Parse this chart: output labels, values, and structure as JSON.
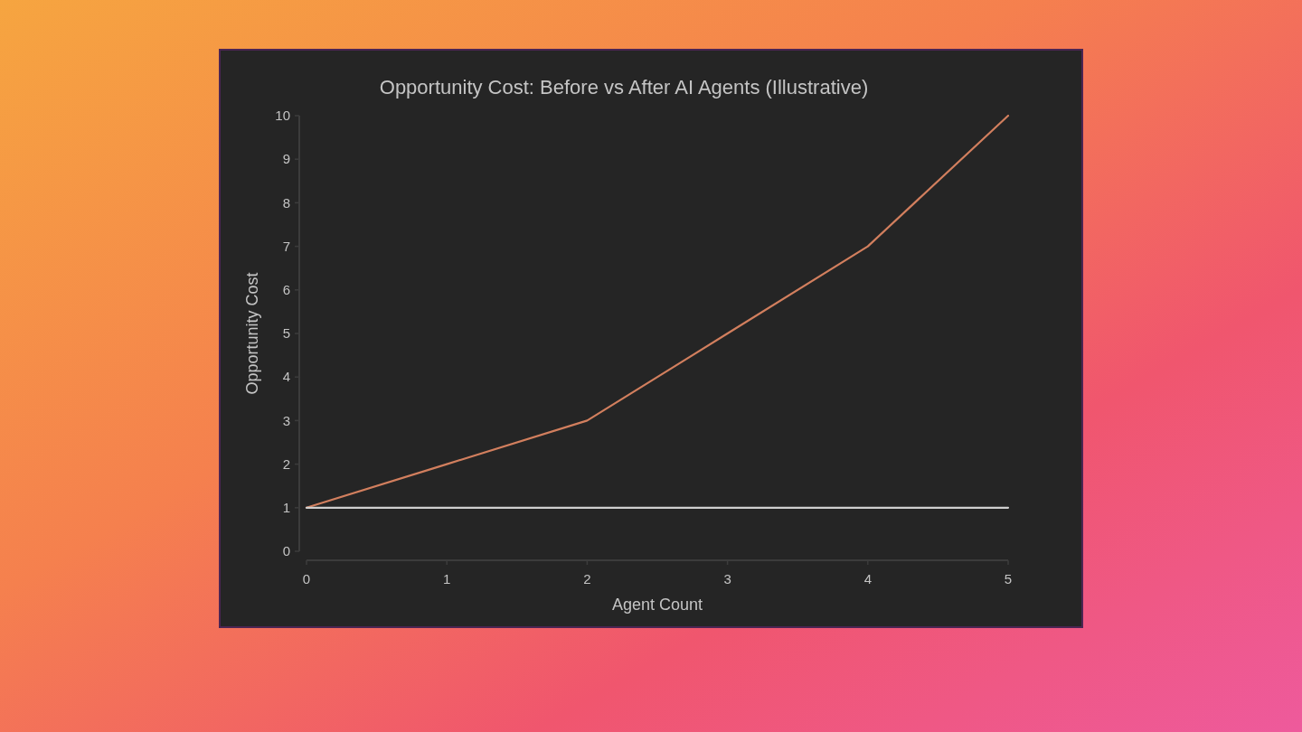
{
  "chart_data": {
    "type": "line",
    "title": "Opportunity Cost: Before vs After AI Agents (Illustrative)",
    "xlabel": "Agent Count",
    "ylabel": "Opportunity Cost",
    "x": [
      0,
      1,
      2,
      3,
      4,
      5
    ],
    "series": [
      {
        "color": "#d27f5e",
        "values": [
          1,
          2,
          3,
          5,
          7,
          10
        ]
      },
      {
        "color": "#cfcfcf",
        "values": [
          1,
          1,
          1,
          1,
          1,
          1
        ]
      }
    ],
    "xlim": [
      0,
      5
    ],
    "xticks": [
      0,
      1,
      2,
      3,
      4,
      5
    ],
    "ylim": [
      0,
      10
    ],
    "yticks": [
      0,
      1,
      2,
      3,
      4,
      5,
      6,
      7,
      8,
      9,
      10
    ]
  }
}
